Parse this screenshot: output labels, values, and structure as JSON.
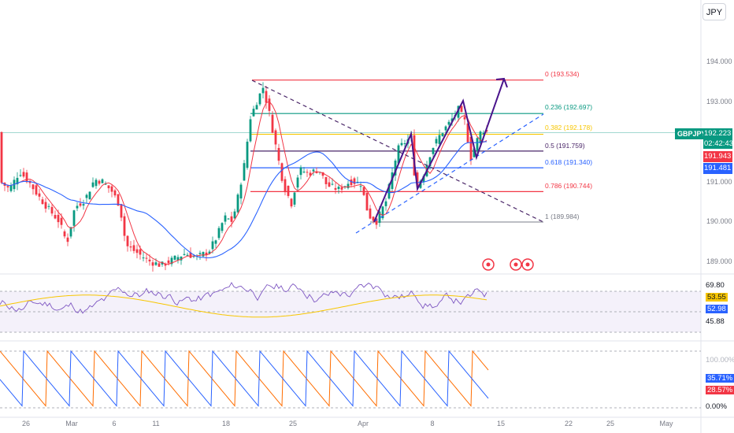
{
  "currency_button": "JPY",
  "symbol": "GBPJPY",
  "last_price": "192.223",
  "countdown": "02:42:43",
  "price_scale": [
    "194.000",
    "193.000",
    "192.000",
    "191.000",
    "190.000",
    "189.000"
  ],
  "ma_fast_price": "191.943",
  "ma_slow_price": "191.481",
  "fib_levels": [
    {
      "label": "0 (193.534)",
      "color": "#f23645"
    },
    {
      "label": "0.236 (192.697)",
      "color": "#089981"
    },
    {
      "label": "0.382 (192.178)",
      "color": "#f7c600"
    },
    {
      "label": "0.5 (191.759)",
      "color": "#4a2668"
    },
    {
      "label": "0.618 (191.340)",
      "color": "#2962ff"
    },
    {
      "label": "0.786 (190.744)",
      "color": "#f23645"
    },
    {
      "label": "1 (189.984)",
      "color": "#9598a1"
    }
  ],
  "rsi_scale": [
    "69.80",
    "53.55",
    "52.98",
    "45.88"
  ],
  "aroon_scale": [
    "100.00%",
    "35.71%",
    "28.57%",
    "0.00%"
  ],
  "time_axis": [
    "26",
    "Mar",
    "6",
    "11",
    "18",
    "25",
    "Apr",
    "8",
    "15",
    "22",
    "25",
    "May"
  ],
  "colors": {
    "bull": "#089981",
    "bear": "#f23645",
    "ma_fast": "#f23645",
    "ma_slow": "#2962ff",
    "rsi": "#7e57c2",
    "rsi_ma": "#f7c600",
    "aroon_up": "#ff6d00",
    "aroon_down": "#2962ff",
    "arrows": "#4a148c"
  }
}
